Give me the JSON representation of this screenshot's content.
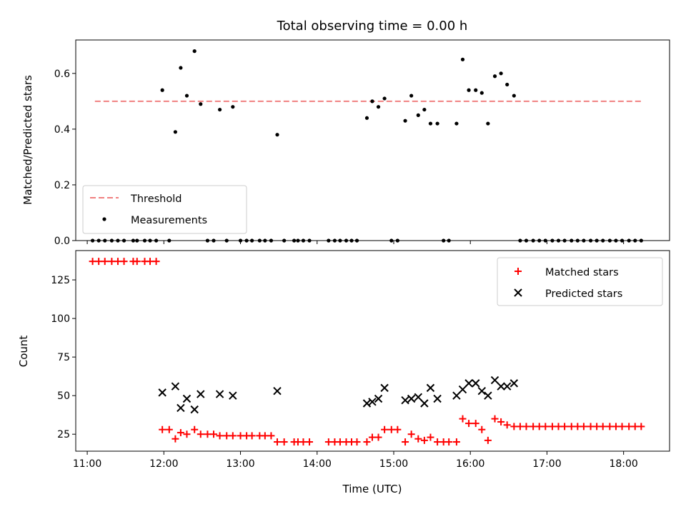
{
  "chart_data": [
    {
      "type": "scatter",
      "title": "Total observing time = 0.00 h",
      "xlabel": "",
      "ylabel": "Matched/Predicted stars",
      "xlim": [
        10.85,
        18.6
      ],
      "ylim": [
        0.0,
        0.72
      ],
      "yticks": [
        0.0,
        0.2,
        0.4,
        0.6
      ],
      "ytick_labels": [
        "0.0",
        "0.2",
        "0.4",
        "0.6"
      ],
      "xticks": [
        11,
        12,
        13,
        14,
        15,
        16,
        17,
        18
      ],
      "xtick_labels": [],
      "grid": false,
      "legend_position": "lower-left",
      "threshold": {
        "name": "Threshold",
        "value": 0.5,
        "x_range": [
          11.1,
          18.25
        ],
        "color": "#f08080"
      },
      "series": [
        {
          "name": "Measurements",
          "color": "#000000",
          "marker": "dot",
          "x": [
            11.07,
            11.15,
            11.23,
            11.32,
            11.4,
            11.48,
            11.6,
            11.65,
            11.75,
            11.82,
            11.9,
            11.98,
            12.07,
            12.15,
            12.22,
            12.3,
            12.4,
            12.48,
            12.57,
            12.65,
            12.73,
            12.82,
            12.9,
            13.0,
            13.08,
            13.15,
            13.25,
            13.32,
            13.4,
            13.48,
            13.57,
            13.7,
            13.75,
            13.82,
            13.9,
            14.15,
            14.23,
            14.3,
            14.38,
            14.45,
            14.52,
            14.65,
            14.72,
            14.8,
            14.88,
            14.97,
            15.05,
            15.15,
            15.23,
            15.32,
            15.4,
            15.48,
            15.57,
            15.65,
            15.72,
            15.82,
            15.9,
            15.98,
            16.07,
            16.15,
            16.23,
            16.32,
            16.4,
            16.48,
            16.57,
            16.65,
            16.73,
            16.82,
            16.9,
            16.98,
            17.07,
            17.15,
            17.23,
            17.32,
            17.4,
            17.48,
            17.57,
            17.65,
            17.73,
            17.82,
            17.9,
            17.98,
            18.07,
            18.15,
            18.23
          ],
          "y": [
            0.0,
            0.0,
            0.0,
            0.0,
            0.0,
            0.0,
            0.0,
            0.0,
            0.0,
            0.0,
            0.0,
            0.54,
            0.0,
            0.39,
            0.62,
            0.52,
            0.68,
            0.49,
            0.0,
            0.0,
            0.47,
            0.0,
            0.48,
            0.0,
            0.0,
            0.0,
            0.0,
            0.0,
            0.0,
            0.38,
            0.0,
            0.0,
            0.0,
            0.0,
            0.0,
            0.0,
            0.0,
            0.0,
            0.0,
            0.0,
            0.0,
            0.44,
            0.5,
            0.48,
            0.51,
            0.0,
            0.0,
            0.43,
            0.52,
            0.45,
            0.47,
            0.42,
            0.42,
            0.0,
            0.0,
            0.42,
            0.65,
            0.54,
            0.54,
            0.53,
            0.42,
            0.59,
            0.6,
            0.56,
            0.52,
            0.0,
            0.0,
            0.0,
            0.0,
            0.0,
            0.0,
            0.0,
            0.0,
            0.0,
            0.0,
            0.0,
            0.0,
            0.0,
            0.0,
            0.0,
            0.0,
            0.0,
            0.0,
            0.0,
            0.0
          ]
        }
      ]
    },
    {
      "type": "scatter",
      "title": "",
      "xlabel": "Time (UTC)",
      "ylabel": "Count",
      "xlim": [
        10.85,
        18.6
      ],
      "ylim": [
        14,
        144
      ],
      "yticks": [
        25,
        50,
        75,
        100,
        125
      ],
      "ytick_labels": [
        "25",
        "50",
        "75",
        "100",
        "125"
      ],
      "xticks": [
        11,
        12,
        13,
        14,
        15,
        16,
        17,
        18
      ],
      "xtick_labels": [
        "11:00",
        "12:00",
        "13:00",
        "14:00",
        "15:00",
        "16:00",
        "17:00",
        "18:00"
      ],
      "grid": false,
      "legend_position": "upper-right",
      "series": [
        {
          "name": "Matched stars",
          "color": "#ff0000",
          "marker": "plus",
          "x": [
            11.07,
            11.15,
            11.23,
            11.32,
            11.4,
            11.48,
            11.6,
            11.65,
            11.75,
            11.82,
            11.9,
            11.98,
            12.07,
            12.15,
            12.22,
            12.3,
            12.4,
            12.48,
            12.57,
            12.65,
            12.73,
            12.82,
            12.9,
            13.0,
            13.08,
            13.15,
            13.25,
            13.32,
            13.4,
            13.48,
            13.57,
            13.7,
            13.75,
            13.82,
            13.9,
            14.15,
            14.23,
            14.3,
            14.38,
            14.45,
            14.52,
            14.65,
            14.72,
            14.8,
            14.88,
            14.97,
            15.05,
            15.15,
            15.23,
            15.32,
            15.4,
            15.48,
            15.57,
            15.65,
            15.72,
            15.82,
            15.9,
            15.98,
            16.07,
            16.15,
            16.23,
            16.32,
            16.4,
            16.48,
            16.57,
            16.65,
            16.73,
            16.82,
            16.9,
            16.98,
            17.07,
            17.15,
            17.23,
            17.32,
            17.4,
            17.48,
            17.57,
            17.65,
            17.73,
            17.82,
            17.9,
            17.98,
            18.07,
            18.15,
            18.23
          ],
          "y": [
            137,
            137,
            137,
            137,
            137,
            137,
            137,
            137,
            137,
            137,
            137,
            28,
            28,
            22,
            26,
            25,
            28,
            25,
            25,
            25,
            24,
            24,
            24,
            24,
            24,
            24,
            24,
            24,
            24,
            20,
            20,
            20,
            20,
            20,
            20,
            20,
            20,
            20,
            20,
            20,
            20,
            20,
            23,
            23,
            28,
            28,
            28,
            20,
            25,
            22,
            21,
            23,
            20,
            20,
            20,
            20,
            35,
            32,
            32,
            28,
            21,
            35,
            33,
            31,
            30,
            30,
            30,
            30,
            30,
            30,
            30,
            30,
            30,
            30,
            30,
            30,
            30,
            30,
            30,
            30,
            30,
            30,
            30,
            30,
            30
          ]
        },
        {
          "name": "Predicted stars",
          "color": "#000000",
          "marker": "x",
          "x": [
            11.98,
            12.15,
            12.22,
            12.3,
            12.4,
            12.48,
            12.73,
            12.9,
            13.48,
            14.65,
            14.72,
            14.8,
            14.88,
            15.15,
            15.23,
            15.32,
            15.4,
            15.48,
            15.57,
            15.82,
            15.9,
            15.98,
            16.07,
            16.15,
            16.23,
            16.32,
            16.4,
            16.48,
            16.57
          ],
          "y": [
            52,
            56,
            42,
            48,
            41,
            51,
            51,
            50,
            53,
            45,
            46,
            48,
            55,
            47,
            48,
            49,
            45,
            55,
            48,
            50,
            54,
            58,
            58,
            53,
            50,
            60,
            56,
            56,
            58
          ]
        }
      ]
    }
  ]
}
